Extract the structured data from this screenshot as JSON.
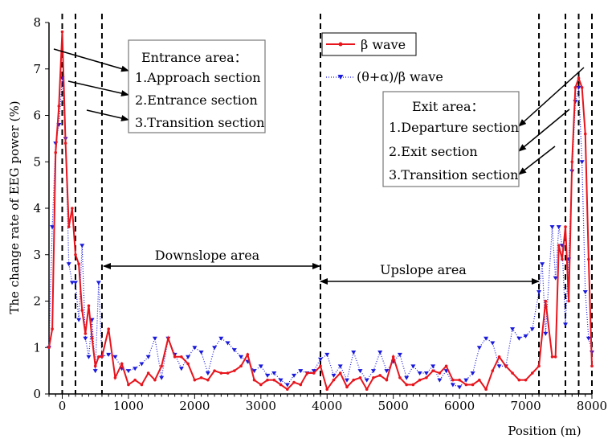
{
  "chart_data": {
    "type": "line",
    "title": "",
    "xlabel": "Position (m)",
    "ylabel": "The change rate of EEG power (%)",
    "xlim": [
      -200,
      8000
    ],
    "ylim": [
      0,
      8
    ],
    "xticks": [
      0,
      1000,
      2000,
      3000,
      4000,
      5000,
      6000,
      7000,
      8000
    ],
    "yticks": [
      0,
      1,
      2,
      3,
      4,
      5,
      6,
      7,
      8
    ],
    "grid": false,
    "legend_position": "top-center",
    "series": [
      {
        "name": "β wave",
        "color": "#e8141c",
        "style": "solid",
        "marker": "circle",
        "x": [
          -200,
          -150,
          -100,
          -50,
          0,
          50,
          100,
          150,
          200,
          250,
          300,
          350,
          400,
          450,
          500,
          550,
          600,
          700,
          800,
          900,
          1000,
          1100,
          1200,
          1300,
          1400,
          1500,
          1600,
          1700,
          1800,
          1900,
          2000,
          2100,
          2200,
          2300,
          2400,
          2500,
          2600,
          2700,
          2800,
          2900,
          3000,
          3100,
          3200,
          3300,
          3400,
          3500,
          3600,
          3700,
          3800,
          3900,
          4000,
          4100,
          4200,
          4300,
          4400,
          4500,
          4600,
          4700,
          4800,
          4900,
          5000,
          5100,
          5200,
          5300,
          5400,
          5500,
          5600,
          5700,
          5800,
          5900,
          6000,
          6100,
          6200,
          6300,
          6400,
          6500,
          6600,
          6700,
          6800,
          6900,
          7000,
          7100,
          7200,
          7300,
          7400,
          7450,
          7500,
          7550,
          7600,
          7650,
          7700,
          7750,
          7800,
          7850,
          7900,
          7950,
          8000
        ],
        "values": [
          1.0,
          1.4,
          5.2,
          6.2,
          7.8,
          5.4,
          3.6,
          4.0,
          3.0,
          2.8,
          1.8,
          1.3,
          1.9,
          1.2,
          0.6,
          0.8,
          0.8,
          1.4,
          0.35,
          0.65,
          0.2,
          0.3,
          0.2,
          0.45,
          0.3,
          0.6,
          1.2,
          0.8,
          0.8,
          0.65,
          0.3,
          0.35,
          0.3,
          0.5,
          0.45,
          0.45,
          0.5,
          0.6,
          0.85,
          0.3,
          0.2,
          0.3,
          0.3,
          0.2,
          0.1,
          0.25,
          0.2,
          0.45,
          0.45,
          0.6,
          0.1,
          0.3,
          0.45,
          0.15,
          0.3,
          0.35,
          0.1,
          0.35,
          0.4,
          0.3,
          0.8,
          0.35,
          0.2,
          0.2,
          0.3,
          0.35,
          0.5,
          0.45,
          0.6,
          0.3,
          0.3,
          0.2,
          0.2,
          0.3,
          0.1,
          0.5,
          0.8,
          0.6,
          0.45,
          0.3,
          0.3,
          0.45,
          0.6,
          2.0,
          0.8,
          0.8,
          3.2,
          2.9,
          3.6,
          2.0,
          5.0,
          6.6,
          6.8,
          6.6,
          5.6,
          2.9,
          0.6
        ]
      },
      {
        "name": "(θ+α)/β wave",
        "color": "#1a1adc",
        "style": "dotted",
        "marker": "triangle-down",
        "x": [
          -200,
          -150,
          -100,
          -50,
          0,
          50,
          100,
          150,
          200,
          250,
          300,
          350,
          400,
          450,
          500,
          550,
          600,
          700,
          800,
          900,
          1000,
          1100,
          1200,
          1300,
          1400,
          1500,
          1600,
          1700,
          1800,
          1900,
          2000,
          2100,
          2200,
          2300,
          2400,
          2500,
          2600,
          2700,
          2800,
          2900,
          3000,
          3100,
          3200,
          3300,
          3400,
          3500,
          3600,
          3700,
          3800,
          3900,
          4000,
          4100,
          4200,
          4300,
          4400,
          4500,
          4600,
          4700,
          4800,
          4900,
          5000,
          5100,
          5200,
          5300,
          5400,
          5500,
          5600,
          5700,
          5800,
          5900,
          6000,
          6100,
          6200,
          6300,
          6400,
          6500,
          6600,
          6700,
          6800,
          6900,
          7000,
          7100,
          7200,
          7250,
          7300,
          7400,
          7450,
          7500,
          7550,
          7600,
          7650,
          7700,
          7750,
          7800,
          7850,
          7900,
          7950,
          8000
        ],
        "values": [
          1.0,
          3.6,
          5.4,
          5.8,
          6.8,
          5.5,
          2.8,
          2.4,
          2.4,
          1.6,
          3.2,
          1.2,
          0.8,
          1.6,
          0.5,
          2.4,
          0.8,
          0.85,
          0.8,
          0.55,
          0.5,
          0.55,
          0.65,
          0.8,
          1.2,
          0.35,
          1.2,
          0.85,
          0.55,
          0.8,
          1.0,
          0.9,
          0.45,
          1.0,
          1.2,
          1.1,
          0.95,
          0.8,
          0.7,
          0.5,
          0.6,
          0.4,
          0.45,
          0.3,
          0.2,
          0.4,
          0.5,
          0.45,
          0.5,
          0.75,
          0.85,
          0.4,
          0.6,
          0.3,
          0.9,
          0.5,
          0.3,
          0.5,
          0.9,
          0.5,
          0.7,
          0.85,
          0.35,
          0.6,
          0.45,
          0.45,
          0.6,
          0.3,
          0.5,
          0.2,
          0.15,
          0.3,
          0.45,
          1.0,
          1.2,
          1.1,
          0.6,
          0.6,
          1.4,
          1.2,
          1.25,
          1.4,
          2.2,
          2.8,
          1.3,
          3.6,
          2.5,
          3.6,
          3.2,
          1.5,
          2.9,
          4.8,
          6.3,
          6.6,
          5.0,
          2.2,
          1.2,
          0.9
        ]
      }
    ],
    "vertical_dashed_lines": [
      0,
      200,
      600,
      3900,
      7200,
      7600,
      7800,
      8000
    ],
    "annotations": {
      "entrance_title": "Entrance area：",
      "entrance_items": [
        "1.Approach section",
        "2.Entrance section",
        "3.Transition section"
      ],
      "exit_title": "Exit area：",
      "exit_items": [
        "1.Departure section",
        "2.Exit section",
        "3.Transition section"
      ],
      "downslope": "Downslope area",
      "upslope": "Upslope area"
    }
  }
}
